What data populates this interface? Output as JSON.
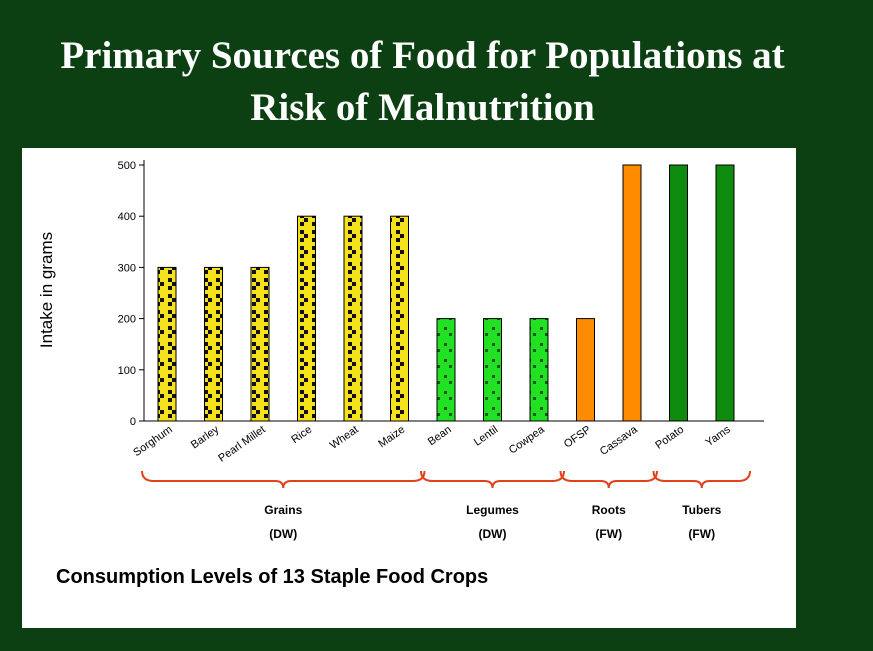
{
  "slide": {
    "title_line1": "Primary Sources of Food for Populations at",
    "title_line2": "Risk of Malnutrition",
    "caption": "Consumption Levels of 13 Staple Food Crops"
  },
  "colors": {
    "background": "#0c3f12",
    "grains": "#f5e11c",
    "legumes": "#22e022",
    "roots": "#ff8c00",
    "tubers": "#0e8a0e",
    "brace": "#e0401a"
  },
  "chart_data": {
    "type": "bar",
    "ylabel": "Intake in grams",
    "ylim": [
      0,
      500
    ],
    "yticks": [
      0,
      100,
      200,
      300,
      400,
      500
    ],
    "categories": [
      "Sorghum",
      "Barley",
      "Pearl Millet",
      "Rice",
      "Wheat",
      "Maize",
      "Bean",
      "Lentil",
      "Cowpea",
      "OFSP",
      "Cassava",
      "Potato",
      "Yams"
    ],
    "values": [
      300,
      300,
      300,
      400,
      400,
      400,
      200,
      200,
      200,
      200,
      500,
      500,
      500
    ],
    "bar_groups": [
      "grains",
      "grains",
      "grains",
      "grains",
      "grains",
      "grains",
      "legumes",
      "legumes",
      "legumes",
      "roots",
      "roots",
      "tubers",
      "tubers"
    ],
    "groups": [
      {
        "key": "grains",
        "label": "Grains",
        "basis": "(DW)",
        "from": 0,
        "to": 5
      },
      {
        "key": "legumes",
        "label": "Legumes",
        "basis": "(DW)",
        "from": 6,
        "to": 8
      },
      {
        "key": "roots",
        "label": "Roots",
        "basis": "(FW)",
        "from": 9,
        "to": 10
      },
      {
        "key": "tubers",
        "label": "Tubers",
        "basis": "(FW)",
        "from": 11,
        "to": 12
      }
    ]
  }
}
